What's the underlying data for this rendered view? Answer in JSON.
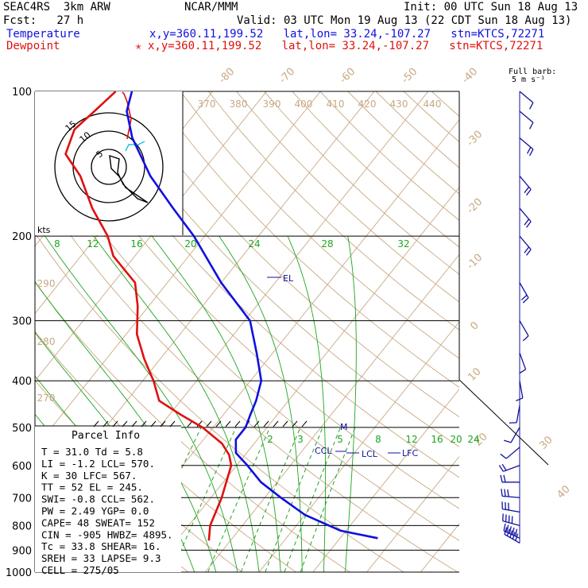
{
  "header": {
    "model": "SEAC4RS  3km ARW",
    "org": "NCAR/MMM",
    "init": "Init: 00 UTC Sun 18 Aug 13",
    "fcst": "Fcst:   27 h",
    "valid": "Valid: 03 UTC Mon 19 Aug 13 (22 CDT Sun 18 Aug 13)",
    "temperature_label": "Temperature",
    "temperature_info": "x,y=360.11,199.52   lat,lon= 33.24,-107.27   stn=KTCS,72271",
    "dewpoint_label": "Dewpoint",
    "dewpoint_star": "✭",
    "dewpoint_info": "x,y=360.11,199.52   lat,lon= 33.24,-107.27   stn=KTCS,72271"
  },
  "barb_legend": {
    "line1": "Full barb:",
    "line2": "5 m s⁻¹"
  },
  "parcel_info": {
    "title": "Parcel Info",
    "rows": [
      "T  =   31.0 Td =   5.8",
      "LI =   -1.2 LCL=  570.",
      "K  =     30 LFC=  567.",
      "TT =     52 EL =  245.",
      "SWI=   -0.8 CCL=  562.",
      "PW =   2.49 YGP=   0.0",
      "CAPE=    48 SWEAT=  152",
      "CIN =  -905 HWBZ= 4895.",
      "Tc =   33.8 SHEAR=  16.",
      "SREH =    33 LAPSE=  9.3",
      "CELL = 275/05"
    ]
  },
  "hodograph": {
    "unit_label": "kts",
    "ring_labels": [
      "5",
      "10",
      "15"
    ]
  },
  "colors": {
    "temperature": "#1010e0",
    "dewpoint": "#e01010",
    "isotherm": "#c8a882",
    "dry_adiabat": "#c8a882",
    "moist_adiabat": "#1fa51f",
    "mixing_ratio": "#1fa51f",
    "isobar": "#000000",
    "hodo_red": "#e01010",
    "hodo_cyan": "#20c0e0"
  },
  "chart_data": {
    "type": "line",
    "title": "",
    "y_axis": {
      "label": "",
      "scale": "log-pressure",
      "range_hPa": [
        1000,
        100
      ],
      "ticks": [
        100,
        200,
        300,
        400,
        500,
        600,
        700,
        800,
        900,
        1000
      ]
    },
    "isotherm_labels_degC": [
      "-80",
      "-70",
      "-60",
      "-50",
      "-40",
      "-30",
      "-20",
      "-10",
      "0",
      "10",
      "20",
      "30",
      "40"
    ],
    "theta_labels_K": [
      "370",
      "380",
      "390",
      "400",
      "410",
      "420",
      "430",
      "440",
      "290",
      "280",
      "270"
    ],
    "mixing_ratio_labels_top": [
      "8",
      "12",
      "16",
      "20",
      "24",
      "28",
      "32"
    ],
    "mixing_ratio_labels_bottom": [
      "2",
      "3",
      "5",
      "8",
      "12",
      "16",
      "20",
      "24"
    ],
    "series": [
      {
        "name": "Temperature",
        "points": [
          [
            850,
            37
          ],
          [
            820,
            29
          ],
          [
            760,
            20
          ],
          [
            700,
            13
          ],
          [
            650,
            7
          ],
          [
            600,
            2
          ],
          [
            565,
            -2
          ],
          [
            530,
            -4
          ],
          [
            500,
            -4
          ],
          [
            470,
            -5
          ],
          [
            440,
            -6
          ],
          [
            400,
            -8
          ],
          [
            350,
            -13
          ],
          [
            300,
            -19
          ],
          [
            250,
            -30
          ],
          [
            200,
            -42
          ],
          [
            175,
            -50
          ],
          [
            150,
            -59
          ],
          [
            125,
            -68
          ],
          [
            110,
            -73
          ],
          [
            100,
            -75
          ]
        ]
      },
      {
        "name": "Dewpoint",
        "points": [
          [
            860,
            6
          ],
          [
            800,
            4
          ],
          [
            700,
            2
          ],
          [
            600,
            -1
          ],
          [
            570,
            -3
          ],
          [
            540,
            -6
          ],
          [
            500,
            -12
          ],
          [
            470,
            -18
          ],
          [
            440,
            -24
          ],
          [
            400,
            -28
          ],
          [
            360,
            -33
          ],
          [
            320,
            -38
          ],
          [
            280,
            -42
          ],
          [
            250,
            -46
          ],
          [
            220,
            -54
          ],
          [
            200,
            -58
          ],
          [
            175,
            -65
          ],
          [
            150,
            -72
          ],
          [
            135,
            -78
          ],
          [
            120,
            -80
          ],
          [
            110,
            -79
          ],
          [
            100,
            -78
          ]
        ]
      }
    ],
    "annotations": [
      "EL",
      "LFC",
      "LCL",
      "CCL",
      "M"
    ],
    "wind_barbs": [
      {
        "p": 870,
        "dir": 300,
        "spd": 25
      },
      {
        "p": 850,
        "dir": 295,
        "spd": 25
      },
      {
        "p": 800,
        "dir": 285,
        "spd": 20
      },
      {
        "p": 750,
        "dir": 280,
        "spd": 15
      },
      {
        "p": 700,
        "dir": 275,
        "spd": 15
      },
      {
        "p": 650,
        "dir": 270,
        "spd": 10
      },
      {
        "p": 600,
        "dir": 250,
        "spd": 10
      },
      {
        "p": 550,
        "dir": 230,
        "spd": 5
      },
      {
        "p": 500,
        "dir": 210,
        "spd": 5
      },
      {
        "p": 450,
        "dir": 190,
        "spd": 5
      },
      {
        "p": 400,
        "dir": 170,
        "spd": 5
      },
      {
        "p": 350,
        "dir": 160,
        "spd": 5
      },
      {
        "p": 300,
        "dir": 150,
        "spd": 5
      },
      {
        "p": 250,
        "dir": 150,
        "spd": 10
      },
      {
        "p": 200,
        "dir": 140,
        "spd": 10
      },
      {
        "p": 175,
        "dir": 140,
        "spd": 10
      },
      {
        "p": 150,
        "dir": 140,
        "spd": 10
      },
      {
        "p": 125,
        "dir": 130,
        "spd": 10
      },
      {
        "p": 110,
        "dir": 130,
        "spd": 5
      },
      {
        "p": 100,
        "dir": 130,
        "spd": 5
      }
    ]
  }
}
